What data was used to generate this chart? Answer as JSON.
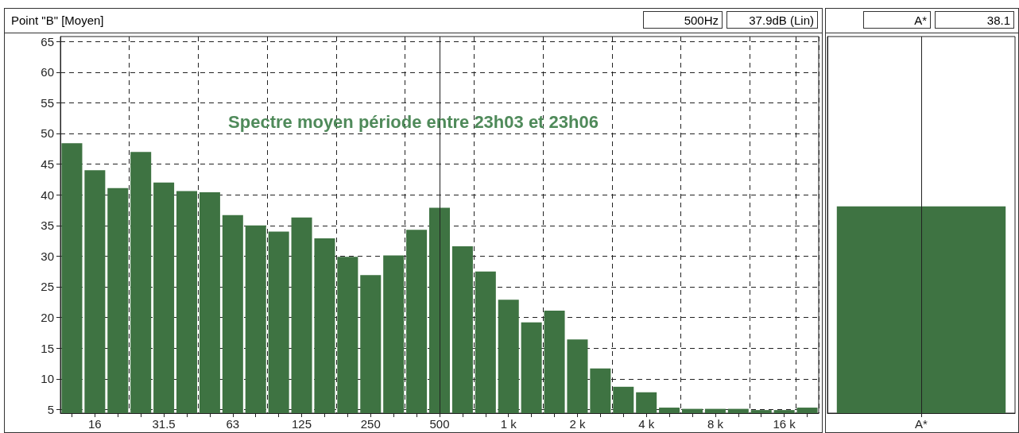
{
  "chart_data": [
    {
      "type": "bar",
      "title": "Point \"B\" [Moyen]",
      "categories": [
        null,
        "16",
        null,
        null,
        "31.5",
        null,
        null,
        "63",
        null,
        null,
        "125",
        null,
        null,
        "250",
        null,
        null,
        "500",
        null,
        null,
        "1 k",
        null,
        null,
        "2 k",
        null,
        null,
        "4 k",
        null,
        null,
        "8 k",
        null,
        null,
        "16 k",
        null
      ],
      "values": [
        48.4,
        44,
        41.1,
        47,
        42,
        40.6,
        40.4,
        36.7,
        35,
        34,
        36.3,
        32.9,
        29.9,
        26.9,
        30.1,
        34.3,
        37.9,
        31.6,
        27.5,
        22.9,
        19.2,
        21.1,
        16.4,
        11.7,
        8.7,
        7.8,
        5.3,
        5.1,
        5.1,
        5.1,
        4.9,
        4.9,
        5.3
      ],
      "color": "#3e7342",
      "ylim": [
        4.4,
        65.8
      ],
      "yticks": [
        5,
        10,
        15,
        20,
        25,
        30,
        35,
        40,
        45,
        50,
        55,
        60,
        65
      ],
      "grid": true,
      "ref_lines": [
        {
          "axis": "x",
          "value": "500",
          "color": "#222222"
        }
      ],
      "annotations": [
        "Spectre moyen période entre 23h03 et 23h06",
        "500Hz",
        "37.9dB (Lin)"
      ]
    },
    {
      "type": "bar",
      "categories": [
        "A*"
      ],
      "values": [
        38.1
      ],
      "color": "#3e7342",
      "ylim": [
        4.4,
        65.8
      ],
      "tick_labels": "x",
      "ref_lines": [
        {
          "axis": "x",
          "value": "A*",
          "color": "#222222"
        }
      ],
      "annotations": [
        "A*",
        "38.1"
      ]
    }
  ]
}
